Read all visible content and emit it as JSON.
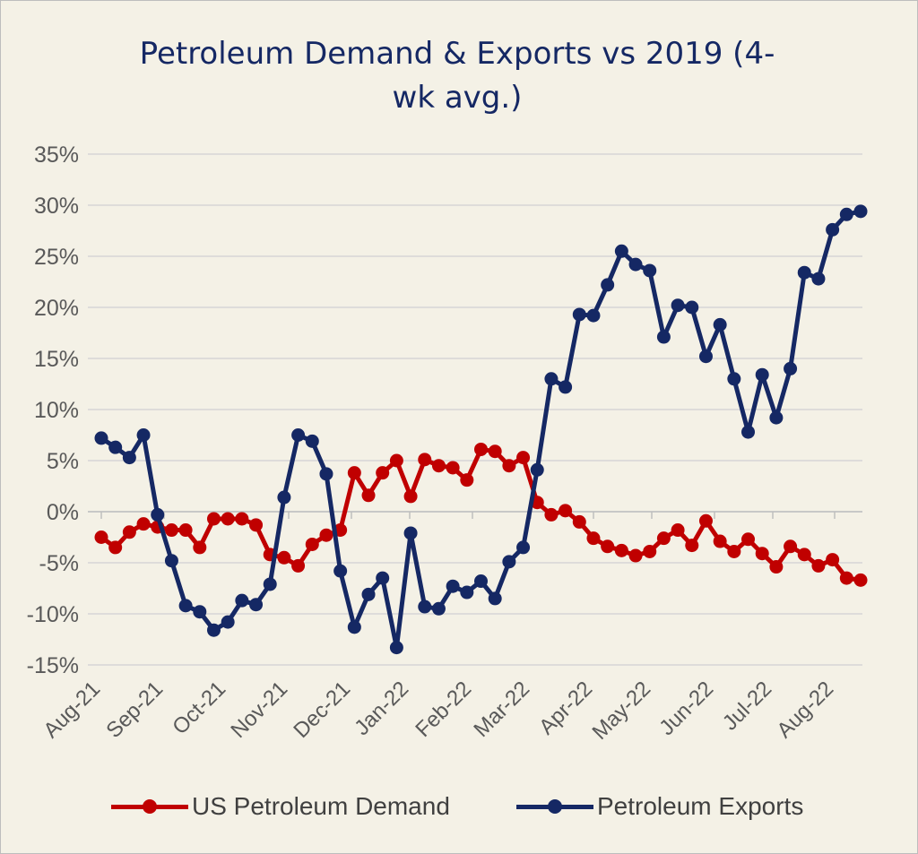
{
  "chart_data": {
    "type": "line",
    "title": "Petroleum Demand & Exports vs 2019 (4-wk avg.)",
    "title_line1": "Petroleum Demand & Exports vs 2019 (4-",
    "title_line2": "wk avg.)",
    "xlabel": "",
    "ylabel": "",
    "ylim": [
      -15,
      35
    ],
    "y_ticks": [
      "35%",
      "30%",
      "25%",
      "20%",
      "15%",
      "10%",
      "5%",
      "0%",
      "-5%",
      "-10%",
      "-15%"
    ],
    "x_ticks": [
      "Aug-21",
      "Sep-21",
      "Oct-21",
      "Nov-21",
      "Dec-21",
      "Jan-22",
      "Feb-22",
      "Mar-22",
      "Apr-22",
      "May-22",
      "Jun-22",
      "Jul-22",
      "Aug-22"
    ],
    "grid": true,
    "legend_position": "bottom",
    "series": [
      {
        "name": "US Petroleum Demand",
        "color": "#c00000",
        "values": [
          -2.5,
          -3.5,
          -2.0,
          -1.2,
          -1.5,
          -1.8,
          -1.8,
          -3.5,
          -0.7,
          -0.7,
          -0.7,
          -1.3,
          -4.2,
          -4.5,
          -5.3,
          -3.2,
          -2.3,
          -1.8,
          3.8,
          1.6,
          3.8,
          5.0,
          1.5,
          5.1,
          4.5,
          4.3,
          3.1,
          6.1,
          5.9,
          4.5,
          5.3,
          0.9,
          -0.3,
          0.1,
          -1.0,
          -2.6,
          -3.4,
          -3.8,
          -4.3,
          -3.9,
          -2.6,
          -1.8,
          -3.3,
          -0.9,
          -2.9,
          -3.9,
          -2.7,
          -4.1,
          -5.4,
          -3.4,
          -4.2,
          -5.3,
          -4.7,
          -6.5,
          -6.7
        ]
      },
      {
        "name": "Petroleum Exports",
        "color": "#152864",
        "values": [
          7.2,
          6.3,
          5.3,
          7.5,
          -0.3,
          -4.8,
          -9.2,
          -9.8,
          -11.6,
          -10.8,
          -8.7,
          -9.1,
          -7.1,
          1.4,
          7.5,
          6.9,
          3.7,
          -5.8,
          -11.3,
          -8.1,
          -6.5,
          -13.3,
          -2.1,
          -9.3,
          -9.5,
          -7.3,
          -7.9,
          -6.8,
          -8.5,
          -4.9,
          -3.5,
          4.1,
          13.0,
          12.2,
          19.3,
          19.2,
          22.2,
          25.5,
          24.2,
          23.6,
          17.1,
          20.2,
          20.0,
          15.2,
          18.3,
          13.0,
          7.8,
          13.4,
          9.2,
          14.0,
          23.4,
          22.8,
          27.6,
          29.1,
          29.4
        ]
      }
    ]
  }
}
